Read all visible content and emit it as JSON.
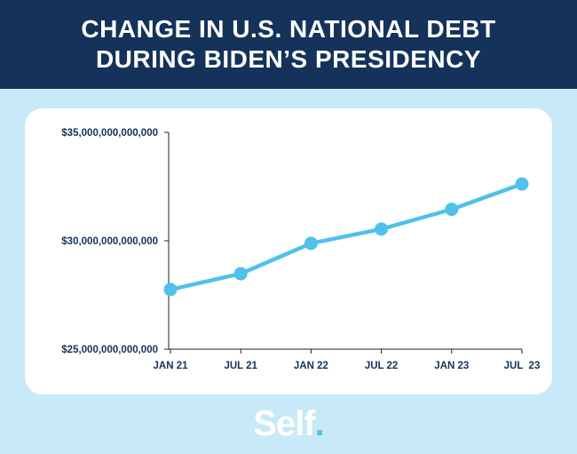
{
  "header": {
    "title_line1": "CHANGE IN U.S. NATIONAL DEBT",
    "title_line2": "DURING BIDEN’S PRESIDENCY"
  },
  "logo": {
    "text": "Self",
    "dot": "."
  },
  "colors": {
    "header_bg": "#14325a",
    "page_bg": "#c7e9f8",
    "line": "#4fc1ea",
    "axis_text": "#14325a"
  },
  "chart_data": {
    "type": "line",
    "title": "CHANGE IN U.S. NATIONAL DEBT DURING BIDEN’S PRESIDENCY",
    "xlabel": "",
    "ylabel": "",
    "categories": [
      "JAN 21",
      "JUL 21",
      "JAN 22",
      "JUL 22",
      "JAN 23",
      "JUL  23"
    ],
    "series": [
      {
        "values": [
          27750000000000,
          28480000000000,
          29880000000000,
          30540000000000,
          31450000000000,
          32620000000000
        ]
      }
    ],
    "ylim": [
      25000000000000,
      35000000000000
    ],
    "yticks": [
      25000000000000,
      30000000000000,
      35000000000000
    ],
    "ytick_labels": [
      "$25,000,000,000,000",
      "$30,000,000,000,000",
      "$35,000,000,000,000"
    ],
    "grid": false,
    "legend": "none"
  }
}
